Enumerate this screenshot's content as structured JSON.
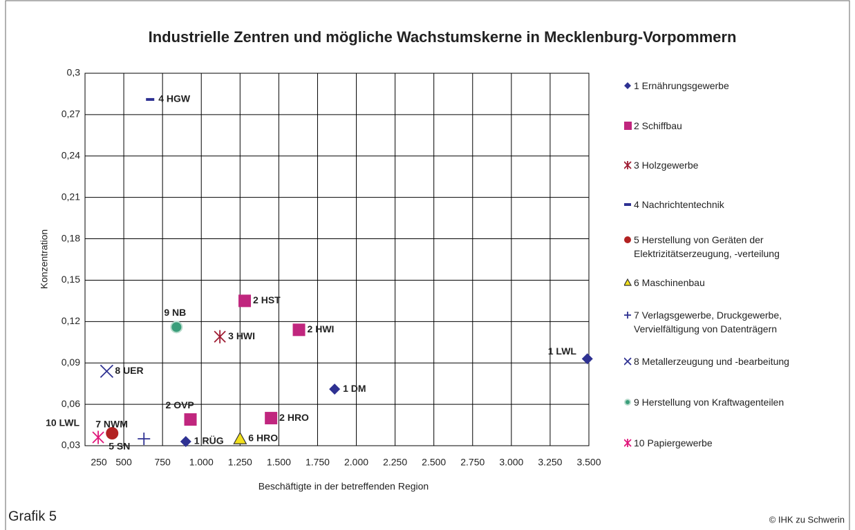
{
  "chart_data": {
    "type": "scatter",
    "title": "Industrielle Zentren und mögliche Wachstumskerne in Mecklenburg-Vorpommern",
    "xlabel": "Beschäftigte in der betreffenden Region",
    "ylabel": "Konzentration",
    "caption": "Grafik 5",
    "credit": "© IHK zu Schwerin",
    "grid": true,
    "xlim": [
      250,
      3500
    ],
    "ylim": [
      0.03,
      0.3
    ],
    "xticks": [
      250,
      {
        "value": 500,
        "label": "500"
      },
      750,
      {
        "value": 1000,
        "label": "1.000"
      },
      {
        "value": 1250,
        "label": "1.250"
      },
      {
        "value": 1500,
        "label": "1.500"
      },
      {
        "value": 1750,
        "label": "1.750"
      },
      {
        "value": 2000,
        "label": "2.000"
      },
      {
        "value": 2250,
        "label": "2.250"
      },
      {
        "value": 2500,
        "label": "2.500"
      },
      {
        "value": 2750,
        "label": "2.750"
      },
      {
        "value": 3000,
        "label": "3.000"
      },
      {
        "value": 3250,
        "label": "3.250"
      },
      {
        "value": 3500,
        "label": "3.500"
      }
    ],
    "yticks": [
      {
        "value": 0.03,
        "label": "0,03"
      },
      {
        "value": 0.06,
        "label": "0,06"
      },
      {
        "value": 0.09,
        "label": "0,09"
      },
      {
        "value": 0.12,
        "label": "0,12"
      },
      {
        "value": 0.15,
        "label": "0,15"
      },
      {
        "value": 0.18,
        "label": "0,18"
      },
      {
        "value": 0.21,
        "label": "0,21"
      },
      {
        "value": 0.24,
        "label": "0,24"
      },
      {
        "value": 0.27,
        "label": "0,27"
      },
      {
        "value": 0.3,
        "label": "0,3"
      }
    ],
    "series": [
      {
        "name": "1 Ernährungsgewerbe",
        "color": "#2e3192",
        "marker": "diamond",
        "x": [
          3490,
          1860,
          900
        ],
        "values": [
          0.093,
          0.071,
          0.033
        ],
        "labels": [
          "1 LWL",
          "1 DM",
          "1 RÜG"
        ]
      },
      {
        "name": "2 Schiffbau",
        "color": "#c0267e",
        "marker": "square",
        "x": [
          1280,
          1630,
          930,
          1450
        ],
        "values": [
          0.135,
          0.114,
          0.049,
          0.05
        ],
        "labels": [
          "2 HST",
          "2 HWI",
          "2 OVP",
          "2 HRO"
        ]
      },
      {
        "name": "3 Holzgewerbe",
        "color": "#9e1b32",
        "marker": "asterisk",
        "x": [
          1120
        ],
        "values": [
          0.109
        ],
        "labels": [
          "3 HWI"
        ]
      },
      {
        "name": "4 Nachrichtentechnik",
        "color": "#2e3192",
        "marker": "dash",
        "x": [
          670
        ],
        "values": [
          0.281
        ],
        "labels": [
          "4 HGW"
        ]
      },
      {
        "name": "5 Herstellung von Geräten der Elektrizitätserzeugung, -verteilung",
        "color": "#b22222",
        "marker": "circle",
        "x": [
          425
        ],
        "values": [
          0.039
        ],
        "labels": [
          "5 SN"
        ]
      },
      {
        "name": "6 Maschinenbau",
        "color": "#f2e01c",
        "marker": "triangle",
        "x": [
          1250
        ],
        "values": [
          0.035
        ],
        "labels": [
          "6 HRO"
        ]
      },
      {
        "name": "7 Verlagsgewerbe, Druckgewerbe, Vervielfältigung  von Datenträgern",
        "color": "#2e3192",
        "marker": "plus",
        "x": [
          630
        ],
        "values": [
          0.035
        ],
        "labels": [
          "7 NWM"
        ]
      },
      {
        "name": "8 Metallerzeugung und -bearbeitung",
        "color": "#2e3192",
        "marker": "cross",
        "x": [
          390
        ],
        "values": [
          0.084
        ],
        "labels": [
          "8 UER"
        ]
      },
      {
        "name": "9 Herstellung von Kraftwagenteilen",
        "color": "#3a9e7a",
        "marker": "dot",
        "x": [
          840
        ],
        "values": [
          0.116
        ],
        "labels": [
          "9 NB"
        ]
      },
      {
        "name": "10 Papiergewerbe",
        "color": "#e0157a",
        "marker": "asterisk",
        "x": [
          335
        ],
        "values": [
          0.036
        ],
        "labels": [
          "10 LWL"
        ]
      }
    ]
  }
}
